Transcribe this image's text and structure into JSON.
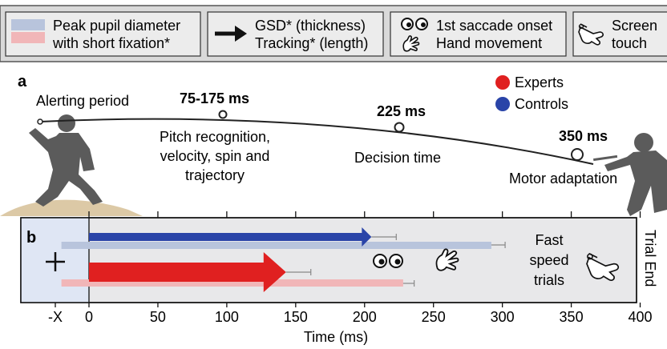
{
  "legend": {
    "pupil": {
      "line1": "Peak pupil diameter",
      "line2": "with short fixation*"
    },
    "gsd": {
      "line1": "GSD* (thickness)",
      "line2": "Tracking* (length)"
    },
    "saccade": {
      "line1": "1st saccade onset",
      "line2": "Hand movement"
    },
    "touch": {
      "line1": "Screen",
      "line2": "touch"
    }
  },
  "panel_a": {
    "label": "a",
    "alerting": "Alerting period",
    "t1": "75-175 ms",
    "t1_text": [
      "Pitch recognition,",
      "velocity, spin and",
      "trajectory"
    ],
    "t2": "225 ms",
    "t2_text": "Decision time",
    "t3": "350 ms",
    "t3_text": "Motor adaptation",
    "groups": [
      {
        "name": "Experts",
        "color": "#e02020"
      },
      {
        "name": "Controls",
        "color": "#2a44a8"
      }
    ]
  },
  "panel_b": {
    "label": "b",
    "trial_type": [
      "Fast",
      "speed",
      "trials"
    ],
    "trial_end": "Trial End",
    "xlabel": "Time (ms)",
    "x_neg_label": "-X",
    "ticks": [
      "0",
      "50",
      "100",
      "150",
      "200",
      "250",
      "300",
      "350",
      "400"
    ]
  },
  "chart_data": {
    "type": "bar",
    "xlabel": "Time (ms)",
    "xlim": [
      0,
      400
    ],
    "series": [
      {
        "group": "Controls",
        "measure": "Tracking (arrow)",
        "start": 0,
        "end": 205,
        "error": 18,
        "color": "#2a44a8"
      },
      {
        "group": "Controls",
        "measure": "Peak pupil diameter",
        "start": -20,
        "end": 292,
        "error": 10,
        "color": "#b8c4dc"
      },
      {
        "group": "Experts",
        "measure": "Tracking (arrow)",
        "start": 0,
        "end": 143,
        "error": 18,
        "color": "#e02020"
      },
      {
        "group": "Experts",
        "measure": "Peak pupil diameter",
        "start": -20,
        "end": 228,
        "error": 8,
        "color": "#f1b6b8"
      }
    ]
  }
}
